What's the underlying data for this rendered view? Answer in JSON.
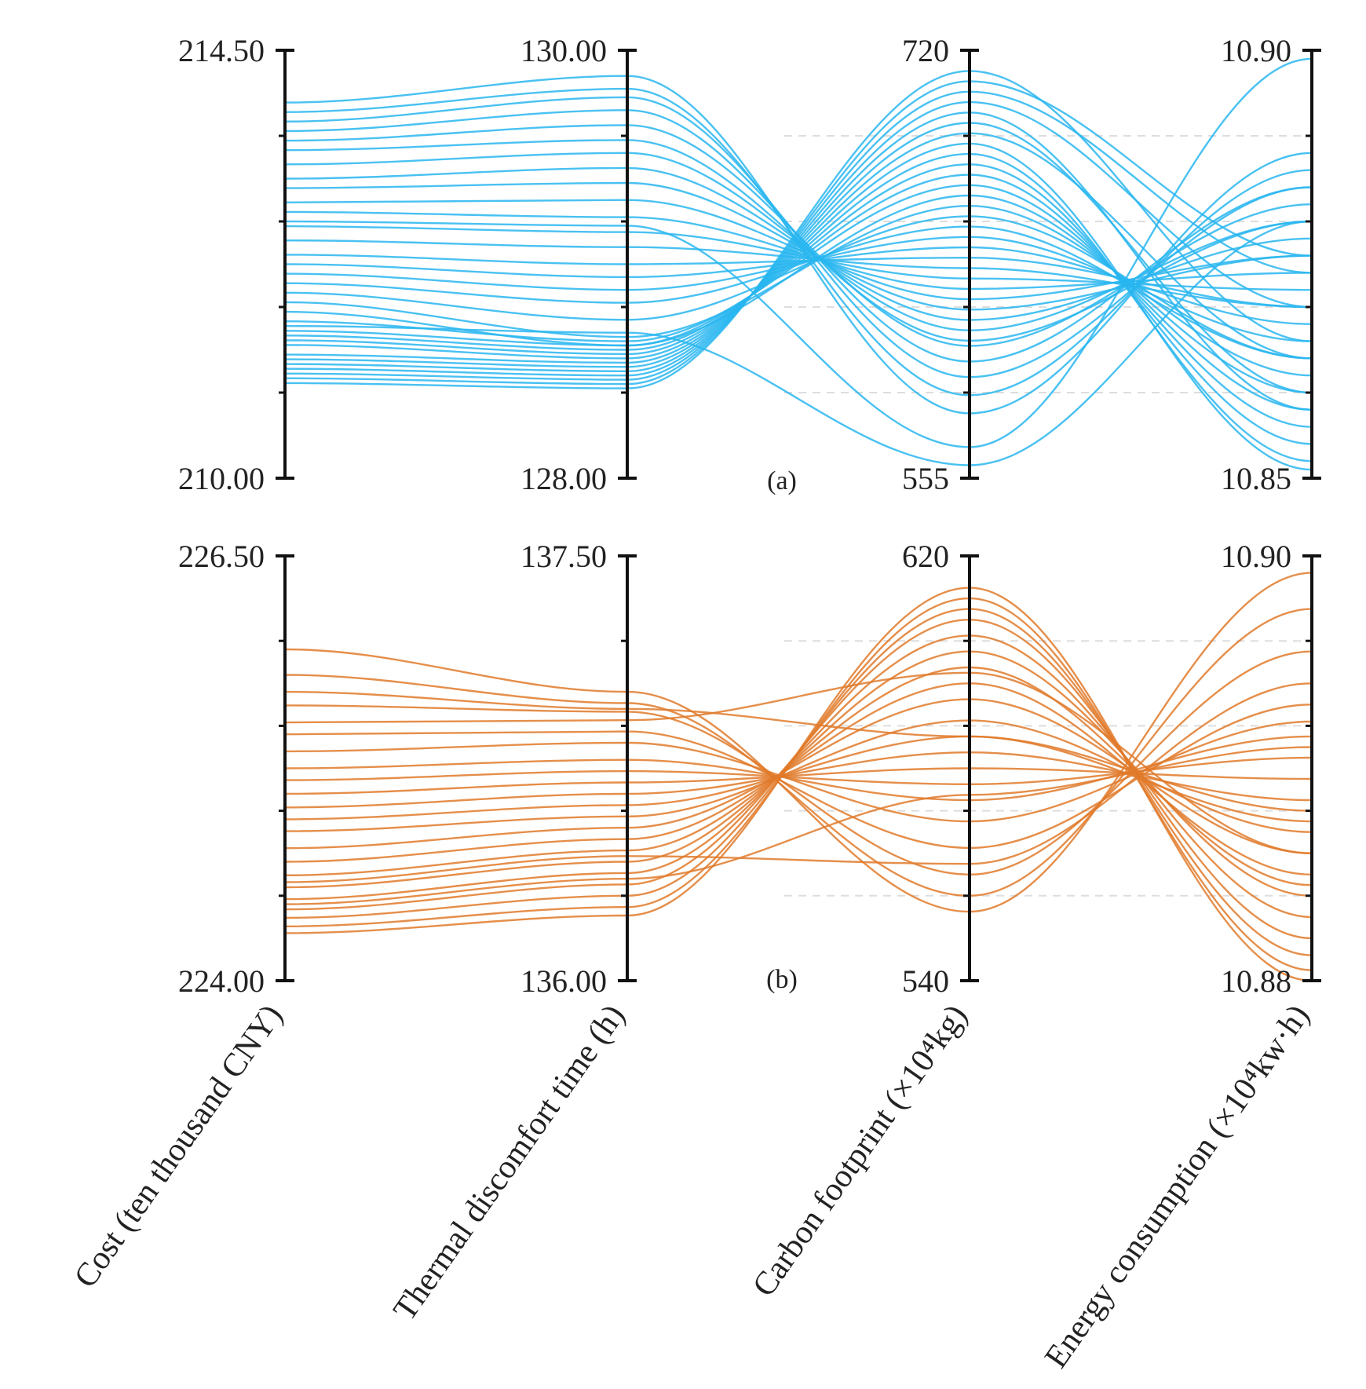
{
  "chart_data": [
    {
      "panel": "(a)",
      "type": "parallel-coordinates",
      "color": "#29b6f0",
      "axes": [
        {
          "name": "Cost (ten thousand CNY)",
          "min": 210.0,
          "max": 214.5,
          "min_label": "210.00",
          "max_label": "214.50"
        },
        {
          "name": "Thermal discomfort time (h)",
          "min": 128.0,
          "max": 130.0,
          "min_label": "128.00",
          "max_label": "130.00"
        },
        {
          "name": "Carbon footprint (×10⁴kg)",
          "min": 555,
          "max": 720,
          "min_label": "555",
          "max_label": "720"
        },
        {
          "name": "Energy consumption (×10⁴kw·h)",
          "min": 10.85,
          "max": 10.9,
          "min_label": "10.85",
          "max_label": "10.90"
        }
      ],
      "series": [
        [
          213.95,
          129.88,
          580.0,
          10.888
        ],
        [
          213.85,
          129.82,
          587.0,
          10.886
        ],
        [
          213.75,
          129.78,
          594.0,
          10.884
        ],
        [
          213.65,
          129.72,
          600.0,
          10.884
        ],
        [
          213.55,
          129.65,
          606.0,
          10.882
        ],
        [
          213.45,
          129.58,
          608.0,
          10.88
        ],
        [
          213.3,
          129.52,
          612.0,
          10.88
        ],
        [
          213.15,
          129.45,
          616.0,
          10.878
        ],
        [
          213.05,
          129.38,
          620.0,
          10.876
        ],
        [
          212.9,
          129.3,
          624.0,
          10.876
        ],
        [
          212.8,
          129.22,
          628.0,
          10.874
        ],
        [
          212.65,
          129.15,
          632.0,
          10.872
        ],
        [
          212.5,
          129.08,
          636.0,
          10.87
        ],
        [
          212.35,
          129.0,
          640.0,
          10.87
        ],
        [
          212.25,
          128.94,
          644.0,
          10.868
        ],
        [
          212.15,
          128.88,
          648.0,
          10.866
        ],
        [
          212.05,
          128.82,
          652.0,
          10.864
        ],
        [
          211.95,
          128.74,
          656.0,
          10.864
        ],
        [
          211.85,
          128.66,
          660.0,
          10.862
        ],
        [
          211.75,
          128.62,
          664.0,
          10.86
        ],
        [
          211.65,
          128.64,
          668.0,
          10.858
        ],
        [
          211.55,
          128.62,
          672.0,
          10.856
        ],
        [
          211.5,
          128.6,
          676.0,
          10.854
        ],
        [
          211.45,
          128.58,
          680.0,
          10.852
        ],
        [
          211.4,
          128.56,
          684.0,
          10.851
        ],
        [
          211.3,
          128.54,
          688.0,
          10.864
        ],
        [
          211.25,
          128.52,
          692.0,
          10.86
        ],
        [
          211.2,
          128.5,
          696.0,
          10.858
        ],
        [
          211.15,
          128.48,
          700.0,
          10.87
        ],
        [
          211.1,
          128.46,
          704.0,
          10.874
        ],
        [
          211.05,
          128.44,
          708.0,
          10.876
        ],
        [
          211.0,
          128.42,
          712.0,
          10.866
        ],
        [
          212.7,
          129.18,
          567.0,
          10.899
        ],
        [
          211.6,
          128.68,
          560.0,
          10.88
        ]
      ]
    },
    {
      "panel": "(b)",
      "type": "parallel-coordinates",
      "color": "#e07a2a",
      "axes": [
        {
          "name": "Cost (ten thousand CNY)",
          "min": 224.0,
          "max": 226.5,
          "min_label": "224.00",
          "max_label": "226.50"
        },
        {
          "name": "Thermal discomfort time (h)",
          "min": 136.0,
          "max": 137.5,
          "min_label": "136.00",
          "max_label": "137.50"
        },
        {
          "name": "Carbon footprint (×10⁴kg)",
          "min": 540,
          "max": 620,
          "min_label": "540",
          "max_label": "620"
        },
        {
          "name": "Energy consumption (×10⁴kw·h)",
          "min": 10.88,
          "max": 10.9,
          "min_label": "10.88",
          "max_label": "10.90"
        }
      ],
      "series": [
        [
          225.95,
          137.02,
          553.0,
          10.8992
        ],
        [
          225.8,
          136.98,
          556.0,
          10.8975
        ],
        [
          225.62,
          136.95,
          560.0,
          10.8955
        ],
        [
          225.45,
          136.88,
          565.0,
          10.893
        ],
        [
          225.35,
          136.84,
          570.0,
          10.8922
        ],
        [
          225.25,
          136.78,
          574.0,
          10.8915
        ],
        [
          225.18,
          136.74,
          577.0,
          10.8905
        ],
        [
          225.1,
          136.7,
          580.0,
          10.8895
        ],
        [
          225.02,
          136.66,
          583.0,
          10.8885
        ],
        [
          224.95,
          136.62,
          586.0,
          10.8875
        ],
        [
          224.88,
          136.58,
          589.0,
          10.887
        ],
        [
          224.78,
          136.54,
          593.0,
          10.886
        ],
        [
          224.7,
          136.5,
          596.0,
          10.885
        ],
        [
          224.62,
          136.46,
          599.0,
          10.8845
        ],
        [
          224.55,
          136.42,
          602.0,
          10.884
        ],
        [
          224.48,
          136.38,
          605.0,
          10.883
        ],
        [
          224.42,
          136.34,
          608.0,
          10.882
        ],
        [
          224.37,
          136.3,
          610.0,
          10.8812
        ],
        [
          224.32,
          136.26,
          612.0,
          10.8805
        ],
        [
          224.28,
          136.23,
          614.0,
          10.88
        ],
        [
          225.52,
          136.92,
          598.0,
          10.886
        ],
        [
          224.58,
          136.44,
          562.0,
          10.894
        ],
        [
          224.45,
          136.36,
          575.0,
          10.891
        ],
        [
          225.7,
          136.96,
          586.0,
          10.888
        ]
      ]
    }
  ],
  "axis_titles": [
    "Cost (ten thousand CNY)",
    "Thermal discomfort time (h)",
    "Carbon footprint (×10⁴kg)",
    "Energy consumption (×10⁴kw·h)"
  ]
}
